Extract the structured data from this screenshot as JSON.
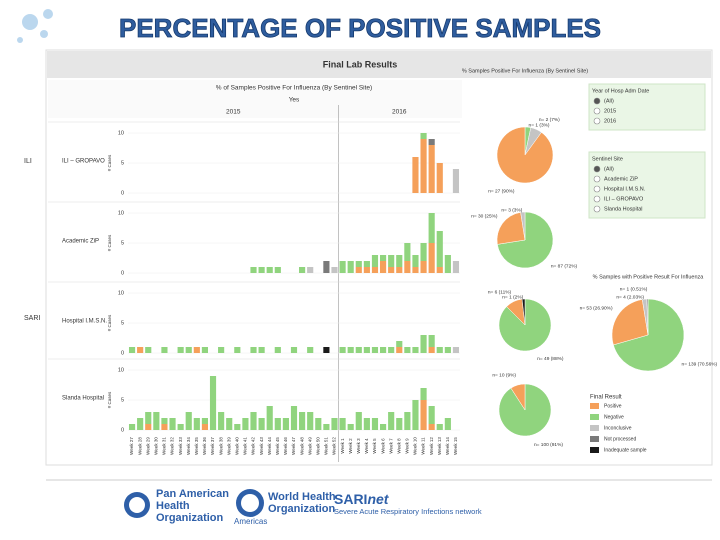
{
  "header": {
    "title": "PERCENTAGE OF POSITIVE SAMPLES",
    "dashboard_title": "Final Lab Results"
  },
  "chart_data": [
    {
      "type": "faceted_stacked_bar",
      "title": "% of Samples Positive For Influenza (By Sentinel Site)",
      "subtitle": "Yes",
      "y_label": "# Cases",
      "ylim": [
        0,
        10
      ],
      "yticks": [
        0,
        5,
        10
      ],
      "categories": [
        "Week 27",
        "Week 28",
        "Week 29",
        "Week 30",
        "Week 31",
        "Week 32",
        "Week 33",
        "Week 34",
        "Week 35",
        "Week 36",
        "Week 37",
        "Week 38",
        "Week 39",
        "Week 40",
        "Week 41",
        "Week 42",
        "Week 43",
        "Week 44",
        "Week 45",
        "Week 46",
        "Week 47",
        "Week 48",
        "Week 49",
        "Week 50",
        "Week 51",
        "Week 52",
        "Week 1",
        "Week 2",
        "Week 3",
        "Week 4",
        "Week 5",
        "Week 6",
        "Week 7",
        "Week 8",
        "Week 9",
        "Week 10",
        "Week 11",
        "Week 12",
        "Week 13",
        "Week 14",
        "Week 15"
      ],
      "years": [
        "2015",
        "2016"
      ],
      "groups": [
        "ILI",
        "SARI"
      ],
      "legend_title": "Final Result",
      "series": [
        {
          "name": "Positive",
          "color": "#f5a05a"
        },
        {
          "name": "Negative",
          "color": "#90d47e"
        },
        {
          "name": "Inconclusive",
          "color": "#c4c4c4"
        },
        {
          "name": "Not processed",
          "color": "#7a7a7a"
        },
        {
          "name": "Inadequate sample",
          "color": "#1a1a1a"
        }
      ],
      "facets": [
        {
          "label": "ILI – GROPAVO",
          "values": [
            [
              0,
              0,
              0,
              0,
              0,
              0,
              0,
              0,
              0,
              0,
              0,
              0,
              0,
              0,
              0,
              0,
              0,
              0,
              0,
              0,
              0,
              0,
              0,
              0,
              0,
              0,
              0,
              0,
              0,
              0,
              0,
              0,
              0,
              0,
              0,
              6,
              9,
              8,
              5,
              0,
              0
            ],
            [
              0,
              0,
              0,
              0,
              0,
              0,
              0,
              0,
              0,
              0,
              0,
              0,
              0,
              0,
              0,
              0,
              0,
              0,
              0,
              0,
              0,
              0,
              0,
              0,
              0,
              0,
              0,
              0,
              0,
              0,
              0,
              0,
              0,
              0,
              0,
              0,
              1,
              0,
              0,
              0,
              0
            ],
            [
              0,
              0,
              0,
              0,
              0,
              0,
              0,
              0,
              0,
              0,
              0,
              0,
              0,
              0,
              0,
              0,
              0,
              0,
              0,
              0,
              0,
              0,
              0,
              0,
              0,
              0,
              0,
              0,
              0,
              0,
              0,
              0,
              0,
              0,
              0,
              0,
              0,
              0,
              0,
              0,
              4
            ],
            [
              0,
              0,
              0,
              0,
              0,
              0,
              0,
              0,
              0,
              0,
              0,
              0,
              0,
              0,
              0,
              0,
              0,
              0,
              0,
              0,
              0,
              0,
              0,
              0,
              0,
              0,
              0,
              0,
              0,
              0,
              0,
              0,
              0,
              0,
              0,
              0,
              0,
              1,
              0,
              0,
              0
            ],
            [
              0,
              0,
              0,
              0,
              0,
              0,
              0,
              0,
              0,
              0,
              0,
              0,
              0,
              0,
              0,
              0,
              0,
              0,
              0,
              0,
              0,
              0,
              0,
              0,
              0,
              0,
              0,
              0,
              0,
              0,
              0,
              0,
              0,
              0,
              0,
              0,
              0,
              0,
              0,
              0,
              0
            ]
          ]
        },
        {
          "label": "Academic ZiP",
          "values": [
            [
              0,
              0,
              0,
              0,
              0,
              0,
              0,
              0,
              0,
              0,
              0,
              0,
              0,
              0,
              0,
              0,
              0,
              0,
              0,
              0,
              0,
              0,
              0,
              0,
              0,
              0,
              0,
              0,
              1,
              1,
              1,
              2,
              1,
              1,
              2,
              1,
              2,
              5,
              1,
              0,
              0
            ],
            [
              0,
              0,
              0,
              0,
              0,
              0,
              0,
              0,
              0,
              0,
              0,
              0,
              0,
              0,
              0,
              1,
              1,
              1,
              1,
              0,
              0,
              1,
              0,
              0,
              0,
              0,
              2,
              2,
              1,
              1,
              2,
              1,
              2,
              2,
              3,
              2,
              3,
              5,
              6,
              3,
              0
            ],
            [
              0,
              0,
              0,
              0,
              0,
              0,
              0,
              0,
              0,
              0,
              0,
              0,
              0,
              0,
              0,
              0,
              0,
              0,
              0,
              0,
              0,
              0,
              1,
              0,
              0,
              1,
              0,
              0,
              0,
              0,
              0,
              0,
              0,
              0,
              0,
              0,
              0,
              0,
              0,
              0,
              2
            ],
            [
              0,
              0,
              0,
              0,
              0,
              0,
              0,
              0,
              0,
              0,
              0,
              0,
              0,
              0,
              0,
              0,
              0,
              0,
              0,
              0,
              0,
              0,
              0,
              0,
              2,
              0,
              0,
              0,
              0,
              0,
              0,
              0,
              0,
              0,
              0,
              0,
              0,
              0,
              0,
              0,
              0
            ],
            [
              0,
              0,
              0,
              0,
              0,
              0,
              0,
              0,
              0,
              0,
              0,
              0,
              0,
              0,
              0,
              0,
              0,
              0,
              0,
              0,
              0,
              0,
              0,
              0,
              0,
              0,
              0,
              0,
              0,
              0,
              0,
              0,
              0,
              0,
              0,
              0,
              0,
              0,
              0,
              0,
              0
            ]
          ]
        },
        {
          "label": "Hospital I.M.S.N.",
          "values": [
            [
              0,
              1,
              0,
              0,
              0,
              0,
              0,
              0,
              1,
              0,
              0,
              0,
              0,
              0,
              0,
              0,
              0,
              0,
              0,
              0,
              0,
              0,
              0,
              0,
              0,
              0,
              0,
              0,
              0,
              0,
              0,
              0,
              0,
              1,
              0,
              0,
              0,
              1,
              0,
              0,
              0
            ],
            [
              1,
              0,
              1,
              0,
              1,
              0,
              1,
              1,
              0,
              1,
              0,
              1,
              0,
              1,
              0,
              1,
              1,
              0,
              1,
              0,
              1,
              0,
              1,
              0,
              0,
              0,
              1,
              1,
              1,
              1,
              1,
              1,
              1,
              1,
              1,
              1,
              3,
              2,
              1,
              1,
              0
            ],
            [
              0,
              0,
              0,
              0,
              0,
              0,
              0,
              0,
              0,
              0,
              0,
              0,
              0,
              0,
              0,
              0,
              0,
              0,
              0,
              0,
              0,
              0,
              0,
              0,
              0,
              0,
              0,
              0,
              0,
              0,
              0,
              0,
              0,
              0,
              0,
              0,
              0,
              0,
              0,
              0,
              1
            ],
            [
              0,
              0,
              0,
              0,
              0,
              0,
              0,
              0,
              0,
              0,
              0,
              0,
              0,
              0,
              0,
              0,
              0,
              0,
              0,
              0,
              0,
              0,
              0,
              0,
              0,
              0,
              0,
              0,
              0,
              0,
              0,
              0,
              0,
              0,
              0,
              0,
              0,
              0,
              0,
              0,
              0
            ],
            [
              0,
              0,
              0,
              0,
              0,
              0,
              0,
              0,
              0,
              0,
              0,
              0,
              0,
              0,
              0,
              0,
              0,
              0,
              0,
              0,
              0,
              0,
              0,
              0,
              1,
              0,
              0,
              0,
              0,
              0,
              0,
              0,
              0,
              0,
              0,
              0,
              0,
              0,
              0,
              0,
              0
            ]
          ]
        },
        {
          "label": "Slanda Hospital",
          "values": [
            [
              0,
              0,
              1,
              0,
              1,
              0,
              0,
              0,
              0,
              1,
              0,
              0,
              0,
              0,
              0,
              0,
              0,
              0,
              0,
              0,
              0,
              0,
              0,
              0,
              0,
              0,
              0,
              0,
              0,
              0,
              0,
              0,
              0,
              0,
              0,
              0,
              5,
              1,
              0,
              0,
              0
            ],
            [
              1,
              2,
              2,
              3,
              1,
              2,
              1,
              3,
              2,
              1,
              9,
              3,
              2,
              1,
              2,
              3,
              2,
              4,
              2,
              2,
              4,
              3,
              3,
              2,
              1,
              2,
              2,
              1,
              3,
              2,
              2,
              1,
              3,
              2,
              3,
              5,
              2,
              3,
              1,
              2,
              0
            ],
            [
              0,
              0,
              0,
              0,
              0,
              0,
              0,
              0,
              0,
              0,
              0,
              0,
              0,
              0,
              0,
              0,
              0,
              0,
              0,
              0,
              0,
              0,
              0,
              0,
              0,
              0,
              0,
              0,
              0,
              0,
              0,
              0,
              0,
              0,
              0,
              0,
              0,
              0,
              0,
              0,
              0
            ],
            [
              0,
              0,
              0,
              0,
              0,
              0,
              0,
              0,
              0,
              0,
              0,
              0,
              0,
              0,
              0,
              0,
              0,
              0,
              0,
              0,
              0,
              0,
              0,
              0,
              0,
              0,
              0,
              0,
              0,
              0,
              0,
              0,
              0,
              0,
              0,
              0,
              0,
              0,
              0,
              0,
              0
            ],
            [
              0,
              0,
              0,
              0,
              0,
              0,
              0,
              0,
              0,
              0,
              0,
              0,
              0,
              0,
              0,
              0,
              0,
              0,
              0,
              0,
              0,
              0,
              0,
              0,
              0,
              0,
              0,
              0,
              0,
              0,
              0,
              0,
              0,
              0,
              0,
              0,
              0,
              0,
              0,
              0,
              0
            ]
          ]
        }
      ]
    },
    {
      "type": "pie",
      "title": "% Samples Positive For Influenza (By Sentinel Site)",
      "values": [
        1,
        2,
        27
      ],
      "value_labels": [
        "n= 1 (3%)",
        "n= 2 (7%)",
        "n= 27 (90%)"
      ],
      "colors": [
        "#90d47e",
        "#c4c4c4",
        "#f5a05a"
      ]
    },
    {
      "type": "pie",
      "values": [
        87,
        30,
        3
      ],
      "value_labels": [
        "n= 87 (72%)",
        "n= 30 (25%)",
        "n= 3 (3%)"
      ],
      "colors": [
        "#90d47e",
        "#f5a05a",
        "#c4c4c4"
      ]
    },
    {
      "type": "pie",
      "values": [
        49,
        6,
        1
      ],
      "value_labels": [
        "n= 49 (88%)",
        "n= 6 (11%)",
        "n= 1 (2%)"
      ],
      "colors": [
        "#90d47e",
        "#f5a05a",
        "#1a1a1a"
      ]
    },
    {
      "type": "pie",
      "values": [
        100,
        10
      ],
      "value_labels": [
        "n= 100 (91%)",
        "n= 10 (9%)"
      ],
      "colors": [
        "#90d47e",
        "#f5a05a"
      ]
    },
    {
      "type": "pie",
      "title": "% Samples with Positive Result For Influenza",
      "values": [
        139,
        53,
        4,
        1
      ],
      "value_labels": [
        "n= 139 (70.56%)",
        "n= 53 (26.90%)",
        "n= 4 (2.03%)",
        "n= 1 (0.51%)"
      ],
      "colors": [
        "#90d47e",
        "#f5a05a",
        "#c4c4c4",
        "#7a7a7a"
      ]
    }
  ],
  "filters": [
    {
      "title": "Year of Hosp Adm Date",
      "options": [
        "(All)",
        "2015",
        "2016"
      ]
    },
    {
      "title": "Sentinel Site",
      "options": [
        "(All)",
        "Academic ZiP",
        "Hospital I.M.S.N.",
        "ILI – GROPAVO",
        "Slanda Hospital"
      ]
    }
  ],
  "logos": {
    "paho": [
      "Pan American",
      "Health",
      "Organization"
    ],
    "who": [
      "World Health",
      "Organization"
    ],
    "who_region": "Americas",
    "sari": [
      "SARI",
      "net"
    ],
    "sari_sub": "Severe Acute Respiratory Infections network"
  }
}
